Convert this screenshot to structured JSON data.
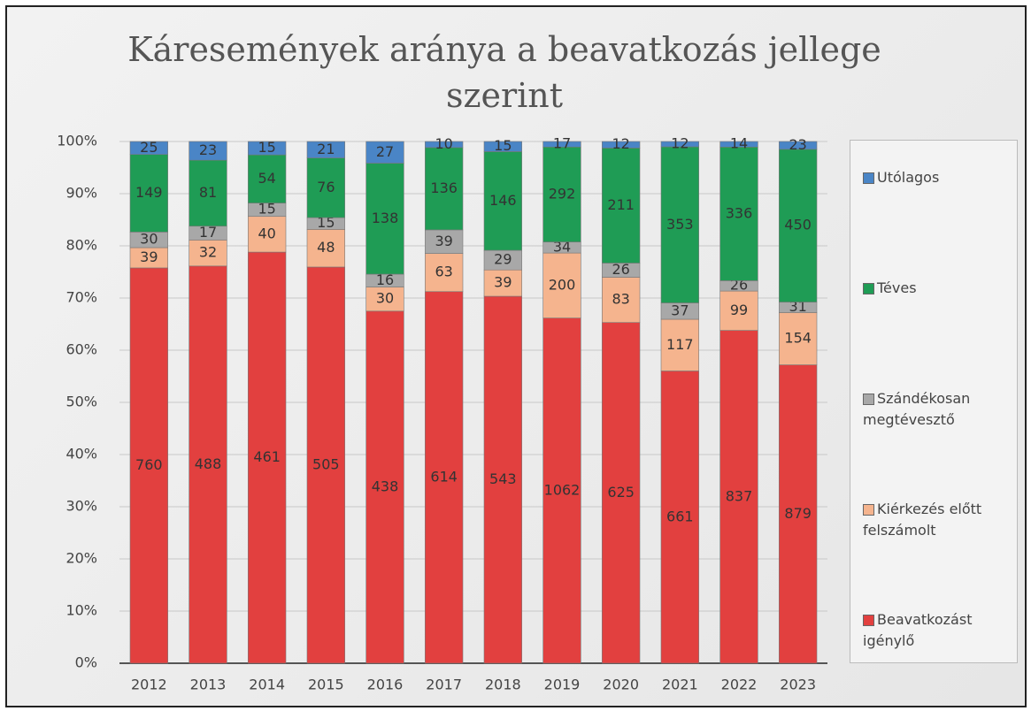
{
  "chart_data": {
    "type": "bar",
    "stacking": "percent",
    "title": "Káresemények aránya a beavatkozás jellege szerint",
    "categories": [
      "2012",
      "2013",
      "2014",
      "2015",
      "2016",
      "2017",
      "2018",
      "2019",
      "2020",
      "2021",
      "2022",
      "2023"
    ],
    "series": [
      {
        "name": "Beavatkozást igénylő",
        "color": "#e2403f",
        "values": [
          760,
          488,
          461,
          505,
          438,
          614,
          543,
          1062,
          625,
          661,
          837,
          879
        ]
      },
      {
        "name": "Kiérkezés előtt felszámolt",
        "color": "#f5b48e",
        "values": [
          39,
          32,
          40,
          48,
          30,
          63,
          39,
          200,
          83,
          117,
          99,
          154
        ]
      },
      {
        "name": "Szándékosan megtévesztő",
        "color": "#a8a8a8",
        "values": [
          30,
          17,
          15,
          15,
          16,
          39,
          29,
          34,
          26,
          37,
          26,
          31
        ]
      },
      {
        "name": "Téves",
        "color": "#1f9c55",
        "values": [
          149,
          81,
          54,
          76,
          138,
          136,
          146,
          292,
          211,
          353,
          336,
          450
        ]
      },
      {
        "name": "Utólagos",
        "color": "#4a85c6",
        "values": [
          25,
          23,
          15,
          21,
          27,
          10,
          15,
          17,
          12,
          12,
          14,
          23
        ]
      }
    ],
    "ylim": [
      0,
      100
    ],
    "yticks": [
      {
        "value": 0,
        "label": "0%"
      },
      {
        "value": 10,
        "label": "10%"
      },
      {
        "value": 20,
        "label": "20%"
      },
      {
        "value": 30,
        "label": "30%"
      },
      {
        "value": 40,
        "label": "40%"
      },
      {
        "value": 50,
        "label": "50%"
      },
      {
        "value": 60,
        "label": "60%"
      },
      {
        "value": 70,
        "label": "70%"
      },
      {
        "value": 80,
        "label": "80%"
      },
      {
        "value": 90,
        "label": "90%"
      },
      {
        "value": 100,
        "label": "100%"
      }
    ],
    "grid": true,
    "legend": "right"
  }
}
